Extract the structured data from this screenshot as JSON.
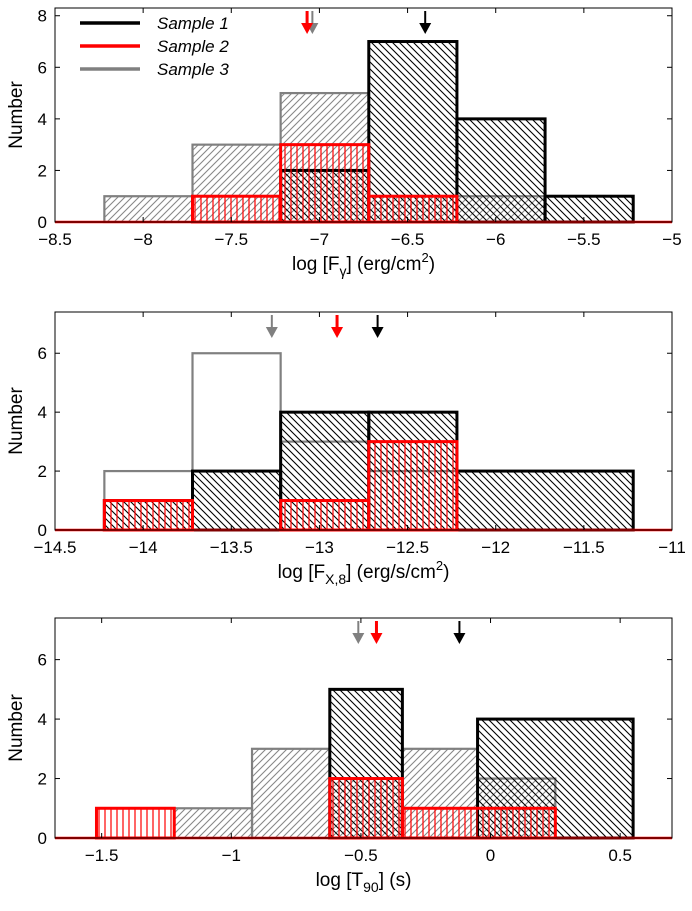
{
  "chart_data": [
    {
      "type": "histogram",
      "xlabel": "log [F",
      "xlabel_sub": "γ",
      "xlabel_units": "(erg/cm",
      "xlabel_units_sup": "2",
      "xlabel_units_end": ")",
      "ylabel": "Number",
      "xlim": [
        -8.5,
        -5
      ],
      "ylim": [
        0,
        8.3
      ],
      "xticks": [
        -8.5,
        -8,
        -7.5,
        -7,
        -6.5,
        -6,
        -5.5,
        -5
      ],
      "xtick_labels": [
        "−8.5",
        "−8",
        "−7.5",
        "−7",
        "−6.5",
        "−6",
        "−5.5",
        "−5"
      ],
      "yticks": [
        0,
        2,
        4,
        6,
        8
      ],
      "ytick_labels": [
        "0",
        "2",
        "4",
        "6",
        "8"
      ],
      "legend": [
        {
          "label": "Sample 1",
          "color": "#000000"
        },
        {
          "label": "Sample 2",
          "color": "#ff0000"
        },
        {
          "label": "Sample 3",
          "color": "#808080"
        }
      ],
      "series": [
        {
          "name": "Sample 3",
          "color": "#808080",
          "hatch": "diag-up",
          "bins": [
            [
              -8.22,
              -7.72,
              1
            ],
            [
              -7.72,
              -7.22,
              3
            ],
            [
              -7.22,
              -6.72,
              5
            ],
            [
              -6.72,
              -6.22,
              1
            ],
            [
              -6.22,
              -5.72,
              1
            ]
          ]
        },
        {
          "name": "Sample 1",
          "color": "#000000",
          "hatch": "diag-down",
          "bins": [
            [
              -7.22,
              -6.72,
              2
            ],
            [
              -6.72,
              -6.22,
              7
            ],
            [
              -6.22,
              -5.72,
              4
            ],
            [
              -5.72,
              -5.22,
              1
            ]
          ]
        },
        {
          "name": "Sample 2",
          "color": "#ff0000",
          "hatch": "vertical",
          "bins": [
            [
              -7.72,
              -7.22,
              1
            ],
            [
              -7.22,
              -6.72,
              3
            ],
            [
              -6.72,
              -6.22,
              1
            ]
          ]
        }
      ],
      "arrows": [
        {
          "name": "Sample 3 median",
          "x": -7.04,
          "color": "#808080"
        },
        {
          "name": "Sample 2 median",
          "x": -7.07,
          "color": "#ff0000"
        },
        {
          "name": "Sample 1 median",
          "x": -6.4,
          "color": "#000000"
        }
      ]
    },
    {
      "type": "histogram",
      "xlabel": "log [F",
      "xlabel_sub": "X,8",
      "xlabel_units": "(erg/s/cm",
      "xlabel_units_sup": "2",
      "xlabel_units_end": ")",
      "ylabel": "Number",
      "xlim": [
        -14.5,
        -11
      ],
      "ylim": [
        0,
        7.4
      ],
      "xticks": [
        -14.5,
        -14,
        -13.5,
        -13,
        -12.5,
        -12,
        -11.5,
        -11
      ],
      "xtick_labels": [
        "−14.5",
        "−14",
        "−13.5",
        "−13",
        "−12.5",
        "−12",
        "−11.5",
        "−11"
      ],
      "yticks": [
        0,
        2,
        4,
        6
      ],
      "ytick_labels": [
        "0",
        "2",
        "4",
        "6"
      ],
      "series": [
        {
          "name": "Sample 3",
          "color": "#808080",
          "hatch": "none",
          "bins": [
            [
              -14.22,
              -13.72,
              2
            ],
            [
              -13.72,
              -13.22,
              6
            ],
            [
              -13.22,
              -12.72,
              3
            ],
            [
              -12.72,
              -12.22,
              2
            ]
          ]
        },
        {
          "name": "Sample 1",
          "color": "#000000",
          "hatch": "diag-down",
          "bins": [
            [
              -14.22,
              -13.72,
              1
            ],
            [
              -13.72,
              -13.22,
              2
            ],
            [
              -13.22,
              -12.72,
              4
            ],
            [
              -12.72,
              -12.22,
              4
            ],
            [
              -12.22,
              -11.22,
              2
            ]
          ]
        },
        {
          "name": "Sample 2",
          "color": "#ff0000",
          "hatch": "vertical",
          "bins": [
            [
              -14.22,
              -13.72,
              1
            ],
            [
              -13.22,
              -12.72,
              1
            ],
            [
              -12.72,
              -12.22,
              3
            ]
          ]
        }
      ],
      "arrows": [
        {
          "name": "Sample 3 median",
          "x": -13.27,
          "color": "#808080"
        },
        {
          "name": "Sample 2 median",
          "x": -12.9,
          "color": "#ff0000"
        },
        {
          "name": "Sample 1 median",
          "x": -12.67,
          "color": "#000000"
        }
      ]
    },
    {
      "type": "histogram",
      "xlabel": "log [T",
      "xlabel_sub": "90",
      "xlabel_units": "(s)",
      "xlabel_units_sup": "",
      "xlabel_units_end": "",
      "ylabel": "Number",
      "xlim": [
        -1.68,
        0.7
      ],
      "ylim": [
        0,
        7.4
      ],
      "xticks": [
        -1.5,
        -1,
        -0.5,
        0,
        0.5
      ],
      "xtick_labels": [
        "−1.5",
        "−1",
        "−0.5",
        "0",
        "0.5"
      ],
      "yticks": [
        0,
        2,
        4,
        6
      ],
      "ytick_labels": [
        "0",
        "2",
        "4",
        "6"
      ],
      "series": [
        {
          "name": "Sample 3",
          "color": "#808080",
          "hatch": "diag-up",
          "bins": [
            [
              -1.22,
              -0.92,
              1
            ],
            [
              -0.92,
              -0.62,
              3
            ],
            [
              -0.62,
              -0.34,
              2
            ],
            [
              -0.34,
              -0.05,
              3
            ],
            [
              -0.05,
              0.25,
              2
            ]
          ]
        },
        {
          "name": "Sample 1",
          "color": "#000000",
          "hatch": "diag-down",
          "bins": [
            [
              -0.62,
              -0.34,
              5
            ],
            [
              -0.05,
              0.55,
              4
            ]
          ]
        },
        {
          "name": "Sample 2",
          "color": "#ff0000",
          "hatch": "vertical",
          "bins": [
            [
              -1.52,
              -1.22,
              1
            ],
            [
              -0.62,
              -0.34,
              2
            ],
            [
              -0.34,
              0.25,
              1
            ]
          ]
        }
      ],
      "arrows": [
        {
          "name": "Sample 3 median",
          "x": -0.51,
          "color": "#808080"
        },
        {
          "name": "Sample 2 median",
          "x": -0.44,
          "color": "#ff0000"
        },
        {
          "name": "Sample 1 median",
          "x": -0.12,
          "color": "#000000"
        }
      ]
    }
  ]
}
